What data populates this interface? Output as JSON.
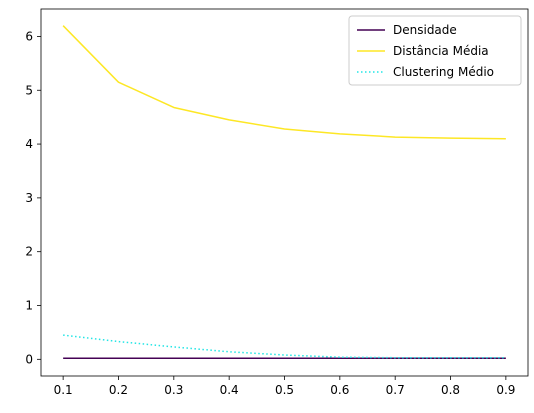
{
  "chart_data": {
    "type": "line",
    "title": "",
    "xlabel": "",
    "ylabel": "",
    "x": [
      0.1,
      0.2,
      0.3,
      0.4,
      0.5,
      0.6,
      0.7,
      0.8,
      0.9
    ],
    "xlim": [
      0.06,
      0.94
    ],
    "ylim": [
      -0.31,
      6.51
    ],
    "xticks": [
      0.1,
      0.2,
      0.3,
      0.4,
      0.5,
      0.6,
      0.7,
      0.8,
      0.9
    ],
    "xtick_labels": [
      "0.1",
      "0.2",
      "0.3",
      "0.4",
      "0.5",
      "0.6",
      "0.7",
      "0.8",
      "0.9"
    ],
    "yticks": [
      0,
      1,
      2,
      3,
      4,
      5,
      6
    ],
    "ytick_labels": [
      "0",
      "1",
      "2",
      "3",
      "4",
      "5",
      "6"
    ],
    "grid": false,
    "legend_position": "top-right",
    "series": [
      {
        "name": "Densidade",
        "color": "#440154",
        "style": "solid",
        "values": [
          0.02,
          0.02,
          0.02,
          0.02,
          0.02,
          0.02,
          0.02,
          0.02,
          0.02
        ]
      },
      {
        "name": "Distância Média",
        "color": "#fde725",
        "style": "solid",
        "values": [
          6.2,
          5.15,
          4.68,
          4.45,
          4.28,
          4.19,
          4.13,
          4.11,
          4.1
        ]
      },
      {
        "name": "Clustering Médio",
        "color": "#22e5e5",
        "style": "dotted",
        "values": [
          0.45,
          0.33,
          0.23,
          0.14,
          0.08,
          0.04,
          0.03,
          0.03,
          0.03
        ]
      }
    ]
  }
}
